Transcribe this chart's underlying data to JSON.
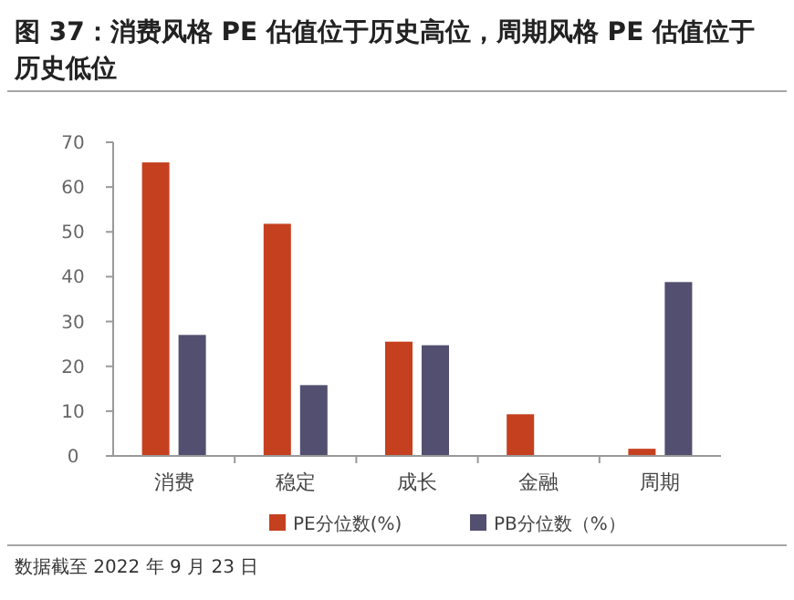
{
  "chart_data": {
    "type": "bar",
    "title": "图 37：消费风格 PE 估值位于历史高位，周期风格 PE 估值位于历史低位",
    "categories": [
      "消费",
      "稳定",
      "成长",
      "金融",
      "周期"
    ],
    "series": [
      {
        "name": "PE分位数(%)",
        "color": "#c5401f",
        "values": [
          65.5,
          51.8,
          25.5,
          9.3,
          1.6
        ]
      },
      {
        "name": "PB分位数（%）",
        "color": "#524f70",
        "values": [
          27.0,
          15.8,
          24.7,
          0,
          38.8
        ]
      }
    ],
    "ylim": [
      0,
      70
    ],
    "yticks": [
      0,
      10,
      20,
      30,
      40,
      50,
      60,
      70
    ],
    "grid": false,
    "legend": "bottom",
    "annotations": [
      "数据截至 2022 年 9 月 23 日"
    ]
  }
}
